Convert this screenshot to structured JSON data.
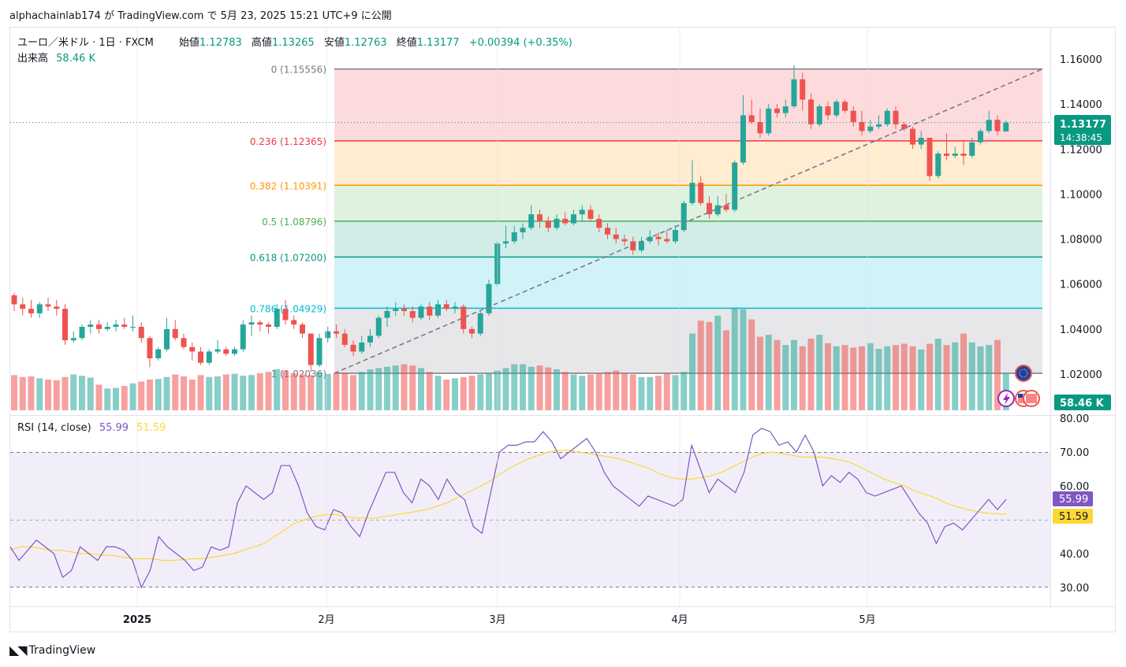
{
  "header": {
    "publish_line": "alphachainlab174 が TradingView.com で 5月 23, 2025 15:21 UTC+9 に公開"
  },
  "legend": {
    "symbol": "ユーロ／米ドル · 1日 · FXCM",
    "open_label": "始値",
    "open": "1.12783",
    "high_label": "高値",
    "high": "1.13265",
    "low_label": "安値",
    "low": "1.12763",
    "close_label": "終値",
    "close": "1.13177",
    "change": "+0.00394 (+0.35%)",
    "volume_label": "出来高",
    "volume": "58.46 K"
  },
  "price_axis": {
    "ticks": [
      "1.16000",
      "1.14000",
      "1.12000",
      "1.10000",
      "1.08000",
      "1.06000",
      "1.04000",
      "1.02000"
    ],
    "last_price": "1.13177",
    "countdown": "14:38:45",
    "volume_badge": "58.46 K"
  },
  "time_axis": {
    "labels": [
      "2025",
      "2月",
      "3月",
      "4月",
      "5月"
    ]
  },
  "rsi": {
    "title": "RSI (14, close)",
    "value": "55.99",
    "ma_value": "51.59",
    "ticks": [
      "80.00",
      "70.00",
      "60.00",
      "50.00",
      "40.00",
      "30.00"
    ]
  },
  "fib_levels": [
    {
      "ratio": "0",
      "price": "1.15556",
      "label": "0 (1.15556)",
      "color": "#787b86"
    },
    {
      "ratio": "0.236",
      "price": "1.12365",
      "label": "0.236 (1.12365)",
      "color": "#f23645"
    },
    {
      "ratio": "0.382",
      "price": "1.10391",
      "label": "0.382 (1.10391)",
      "color": "#ff9800"
    },
    {
      "ratio": "0.5",
      "price": "1.08796",
      "label": "0.5 (1.08796)",
      "color": "#4caf50"
    },
    {
      "ratio": "0.618",
      "price": "1.07200",
      "label": "0.618 (1.07200)",
      "color": "#089981"
    },
    {
      "ratio": "0.786",
      "price": "1.04929",
      "label": "0.786 (1.04929)",
      "color": "#00bcd4"
    },
    {
      "ratio": "1",
      "price": "1.02036",
      "label": "1 (1.02036)",
      "color": "#787b86"
    }
  ],
  "colors": {
    "up": "#26a69a",
    "down": "#ef5350",
    "rsi_line": "#7e57c2",
    "rsi_ma": "#fdd835",
    "last_price_bg": "#089981",
    "rsi_badge": "#7e57c2",
    "rsi_ma_badge": "#fdd835"
  },
  "footer": {
    "brand": "TradingView"
  },
  "chart_data": {
    "type": "candlestick",
    "title": "ユーロ／米ドル · 1日 · FXCM",
    "ylim": [
      1.005,
      1.165
    ],
    "candles": [
      {
        "o": 1.055,
        "h": 1.056,
        "l": 1.048,
        "c": 1.051
      },
      {
        "o": 1.051,
        "h": 1.054,
        "l": 1.046,
        "c": 1.049
      },
      {
        "o": 1.049,
        "h": 1.053,
        "l": 1.045,
        "c": 1.047
      },
      {
        "o": 1.047,
        "h": 1.052,
        "l": 1.045,
        "c": 1.051
      },
      {
        "o": 1.051,
        "h": 1.054,
        "l": 1.048,
        "c": 1.05
      },
      {
        "o": 1.05,
        "h": 1.053,
        "l": 1.046,
        "c": 1.049
      },
      {
        "o": 1.049,
        "h": 1.051,
        "l": 1.033,
        "c": 1.035
      },
      {
        "o": 1.035,
        "h": 1.039,
        "l": 1.034,
        "c": 1.036
      },
      {
        "o": 1.036,
        "h": 1.042,
        "l": 1.035,
        "c": 1.041
      },
      {
        "o": 1.041,
        "h": 1.044,
        "l": 1.038,
        "c": 1.042
      },
      {
        "o": 1.042,
        "h": 1.044,
        "l": 1.038,
        "c": 1.04
      },
      {
        "o": 1.04,
        "h": 1.043,
        "l": 1.039,
        "c": 1.041
      },
      {
        "o": 1.041,
        "h": 1.044,
        "l": 1.039,
        "c": 1.042
      },
      {
        "o": 1.042,
        "h": 1.045,
        "l": 1.04,
        "c": 1.041
      },
      {
        "o": 1.041,
        "h": 1.046,
        "l": 1.039,
        "c": 1.041
      },
      {
        "o": 1.041,
        "h": 1.043,
        "l": 1.034,
        "c": 1.036
      },
      {
        "o": 1.036,
        "h": 1.037,
        "l": 1.023,
        "c": 1.027
      },
      {
        "o": 1.027,
        "h": 1.032,
        "l": 1.026,
        "c": 1.031
      },
      {
        "o": 1.031,
        "h": 1.045,
        "l": 1.03,
        "c": 1.04
      },
      {
        "o": 1.04,
        "h": 1.044,
        "l": 1.035,
        "c": 1.036
      },
      {
        "o": 1.036,
        "h": 1.038,
        "l": 1.031,
        "c": 1.032
      },
      {
        "o": 1.032,
        "h": 1.034,
        "l": 1.026,
        "c": 1.03
      },
      {
        "o": 1.03,
        "h": 1.032,
        "l": 1.024,
        "c": 1.025
      },
      {
        "o": 1.025,
        "h": 1.031,
        "l": 1.024,
        "c": 1.03
      },
      {
        "o": 1.03,
        "h": 1.035,
        "l": 1.029,
        "c": 1.031
      },
      {
        "o": 1.031,
        "h": 1.032,
        "l": 1.028,
        "c": 1.029
      },
      {
        "o": 1.029,
        "h": 1.032,
        "l": 1.028,
        "c": 1.031
      },
      {
        "o": 1.031,
        "h": 1.044,
        "l": 1.03,
        "c": 1.042
      },
      {
        "o": 1.042,
        "h": 1.046,
        "l": 1.037,
        "c": 1.043
      },
      {
        "o": 1.043,
        "h": 1.044,
        "l": 1.039,
        "c": 1.042
      },
      {
        "o": 1.042,
        "h": 1.043,
        "l": 1.038,
        "c": 1.041
      },
      {
        "o": 1.041,
        "h": 1.051,
        "l": 1.04,
        "c": 1.049
      },
      {
        "o": 1.049,
        "h": 1.053,
        "l": 1.042,
        "c": 1.044
      },
      {
        "o": 1.044,
        "h": 1.046,
        "l": 1.04,
        "c": 1.042
      },
      {
        "o": 1.042,
        "h": 1.043,
        "l": 1.036,
        "c": 1.038
      },
      {
        "o": 1.038,
        "h": 1.038,
        "l": 1.021,
        "c": 1.024
      },
      {
        "o": 1.024,
        "h": 1.038,
        "l": 1.023,
        "c": 1.036
      },
      {
        "o": 1.036,
        "h": 1.041,
        "l": 1.034,
        "c": 1.039
      },
      {
        "o": 1.039,
        "h": 1.042,
        "l": 1.036,
        "c": 1.038
      },
      {
        "o": 1.038,
        "h": 1.04,
        "l": 1.032,
        "c": 1.033
      },
      {
        "o": 1.033,
        "h": 1.035,
        "l": 1.028,
        "c": 1.03
      },
      {
        "o": 1.03,
        "h": 1.037,
        "l": 1.029,
        "c": 1.034
      },
      {
        "o": 1.034,
        "h": 1.04,
        "l": 1.032,
        "c": 1.037
      },
      {
        "o": 1.037,
        "h": 1.046,
        "l": 1.036,
        "c": 1.045
      },
      {
        "o": 1.045,
        "h": 1.05,
        "l": 1.041,
        "c": 1.048
      },
      {
        "o": 1.048,
        "h": 1.052,
        "l": 1.046,
        "c": 1.049
      },
      {
        "o": 1.049,
        "h": 1.051,
        "l": 1.046,
        "c": 1.048
      },
      {
        "o": 1.048,
        "h": 1.05,
        "l": 1.043,
        "c": 1.045
      },
      {
        "o": 1.045,
        "h": 1.051,
        "l": 1.044,
        "c": 1.05
      },
      {
        "o": 1.05,
        "h": 1.052,
        "l": 1.044,
        "c": 1.046
      },
      {
        "o": 1.046,
        "h": 1.053,
        "l": 1.045,
        "c": 1.051
      },
      {
        "o": 1.051,
        "h": 1.053,
        "l": 1.048,
        "c": 1.049
      },
      {
        "o": 1.049,
        "h": 1.052,
        "l": 1.047,
        "c": 1.05
      },
      {
        "o": 1.05,
        "h": 1.051,
        "l": 1.038,
        "c": 1.04
      },
      {
        "o": 1.04,
        "h": 1.041,
        "l": 1.036,
        "c": 1.038
      },
      {
        "o": 1.038,
        "h": 1.048,
        "l": 1.037,
        "c": 1.047
      },
      {
        "o": 1.047,
        "h": 1.062,
        "l": 1.046,
        "c": 1.06
      },
      {
        "o": 1.06,
        "h": 1.079,
        "l": 1.059,
        "c": 1.078
      },
      {
        "o": 1.078,
        "h": 1.086,
        "l": 1.076,
        "c": 1.079
      },
      {
        "o": 1.079,
        "h": 1.086,
        "l": 1.078,
        "c": 1.083
      },
      {
        "o": 1.083,
        "h": 1.087,
        "l": 1.08,
        "c": 1.085
      },
      {
        "o": 1.085,
        "h": 1.095,
        "l": 1.084,
        "c": 1.091
      },
      {
        "o": 1.091,
        "h": 1.093,
        "l": 1.085,
        "c": 1.088
      },
      {
        "o": 1.088,
        "h": 1.09,
        "l": 1.083,
        "c": 1.085
      },
      {
        "o": 1.085,
        "h": 1.091,
        "l": 1.084,
        "c": 1.089
      },
      {
        "o": 1.089,
        "h": 1.092,
        "l": 1.086,
        "c": 1.087
      },
      {
        "o": 1.087,
        "h": 1.093,
        "l": 1.086,
        "c": 1.091
      },
      {
        "o": 1.091,
        "h": 1.095,
        "l": 1.088,
        "c": 1.093
      },
      {
        "o": 1.093,
        "h": 1.095,
        "l": 1.088,
        "c": 1.089
      },
      {
        "o": 1.089,
        "h": 1.091,
        "l": 1.083,
        "c": 1.085
      },
      {
        "o": 1.085,
        "h": 1.087,
        "l": 1.08,
        "c": 1.082
      },
      {
        "o": 1.082,
        "h": 1.085,
        "l": 1.078,
        "c": 1.08
      },
      {
        "o": 1.08,
        "h": 1.082,
        "l": 1.077,
        "c": 1.079
      },
      {
        "o": 1.079,
        "h": 1.081,
        "l": 1.073,
        "c": 1.075
      },
      {
        "o": 1.075,
        "h": 1.081,
        "l": 1.074,
        "c": 1.079
      },
      {
        "o": 1.079,
        "h": 1.084,
        "l": 1.078,
        "c": 1.081
      },
      {
        "o": 1.081,
        "h": 1.083,
        "l": 1.077,
        "c": 1.08
      },
      {
        "o": 1.08,
        "h": 1.084,
        "l": 1.078,
        "c": 1.079
      },
      {
        "o": 1.079,
        "h": 1.086,
        "l": 1.078,
        "c": 1.084
      },
      {
        "o": 1.084,
        "h": 1.097,
        "l": 1.083,
        "c": 1.096
      },
      {
        "o": 1.096,
        "h": 1.115,
        "l": 1.095,
        "c": 1.105
      },
      {
        "o": 1.105,
        "h": 1.108,
        "l": 1.095,
        "c": 1.096
      },
      {
        "o": 1.096,
        "h": 1.099,
        "l": 1.089,
        "c": 1.091
      },
      {
        "o": 1.091,
        "h": 1.099,
        "l": 1.09,
        "c": 1.095
      },
      {
        "o": 1.095,
        "h": 1.1,
        "l": 1.092,
        "c": 1.093
      },
      {
        "o": 1.093,
        "h": 1.115,
        "l": 1.092,
        "c": 1.114
      },
      {
        "o": 1.114,
        "h": 1.144,
        "l": 1.113,
        "c": 1.135
      },
      {
        "o": 1.135,
        "h": 1.142,
        "l": 1.131,
        "c": 1.132
      },
      {
        "o": 1.132,
        "h": 1.138,
        "l": 1.125,
        "c": 1.127
      },
      {
        "o": 1.127,
        "h": 1.14,
        "l": 1.126,
        "c": 1.138
      },
      {
        "o": 1.138,
        "h": 1.14,
        "l": 1.134,
        "c": 1.136
      },
      {
        "o": 1.136,
        "h": 1.142,
        "l": 1.134,
        "c": 1.139
      },
      {
        "o": 1.139,
        "h": 1.1573,
        "l": 1.138,
        "c": 1.151
      },
      {
        "o": 1.151,
        "h": 1.154,
        "l": 1.137,
        "c": 1.142
      },
      {
        "o": 1.142,
        "h": 1.145,
        "l": 1.129,
        "c": 1.131
      },
      {
        "o": 1.131,
        "h": 1.14,
        "l": 1.13,
        "c": 1.139
      },
      {
        "o": 1.139,
        "h": 1.141,
        "l": 1.133,
        "c": 1.135
      },
      {
        "o": 1.135,
        "h": 1.142,
        "l": 1.134,
        "c": 1.141
      },
      {
        "o": 1.141,
        "h": 1.142,
        "l": 1.136,
        "c": 1.137
      },
      {
        "o": 1.137,
        "h": 1.139,
        "l": 1.13,
        "c": 1.132
      },
      {
        "o": 1.132,
        "h": 1.137,
        "l": 1.126,
        "c": 1.128
      },
      {
        "o": 1.128,
        "h": 1.133,
        "l": 1.127,
        "c": 1.13
      },
      {
        "o": 1.13,
        "h": 1.135,
        "l": 1.129,
        "c": 1.131
      },
      {
        "o": 1.131,
        "h": 1.138,
        "l": 1.13,
        "c": 1.137
      },
      {
        "o": 1.137,
        "h": 1.139,
        "l": 1.129,
        "c": 1.131
      },
      {
        "o": 1.131,
        "h": 1.132,
        "l": 1.128,
        "c": 1.129
      },
      {
        "o": 1.129,
        "h": 1.13,
        "l": 1.12,
        "c": 1.122
      },
      {
        "o": 1.122,
        "h": 1.128,
        "l": 1.12,
        "c": 1.125
      },
      {
        "o": 1.125,
        "h": 1.125,
        "l": 1.106,
        "c": 1.108
      },
      {
        "o": 1.108,
        "h": 1.119,
        "l": 1.107,
        "c": 1.118
      },
      {
        "o": 1.118,
        "h": 1.127,
        "l": 1.115,
        "c": 1.117
      },
      {
        "o": 1.117,
        "h": 1.121,
        "l": 1.116,
        "c": 1.118
      },
      {
        "o": 1.118,
        "h": 1.124,
        "l": 1.113,
        "c": 1.117
      },
      {
        "o": 1.117,
        "h": 1.125,
        "l": 1.116,
        "c": 1.123
      },
      {
        "o": 1.123,
        "h": 1.129,
        "l": 1.122,
        "c": 1.128
      },
      {
        "o": 1.128,
        "h": 1.137,
        "l": 1.127,
        "c": 1.133
      },
      {
        "o": 1.133,
        "h": 1.135,
        "l": 1.126,
        "c": 1.128
      },
      {
        "o": 1.12783,
        "h": 1.13265,
        "l": 1.12763,
        "c": 1.13177
      }
    ],
    "volume": [
      55,
      52,
      53,
      50,
      48,
      47,
      52,
      56,
      54,
      51,
      40,
      34,
      35,
      38,
      42,
      45,
      48,
      49,
      52,
      56,
      53,
      48,
      55,
      52,
      53,
      56,
      57,
      54,
      55,
      58,
      60,
      64,
      62,
      58,
      56,
      55,
      60,
      57,
      58,
      59,
      55,
      60,
      64,
      66,
      68,
      70,
      72,
      70,
      66,
      60,
      54,
      48,
      50,
      52,
      54,
      56,
      58,
      62,
      66,
      72,
      72,
      68,
      70,
      67,
      64,
      60,
      56,
      54,
      56,
      58,
      60,
      62,
      58,
      56,
      52,
      52,
      54,
      58,
      55,
      60,
      120,
      140,
      138,
      148,
      125,
      160,
      158,
      142,
      115,
      118,
      110,
      102,
      110,
      100,
      112,
      118,
      105,
      100,
      102,
      98,
      100,
      105,
      96,
      100,
      102,
      104,
      100,
      95,
      104,
      112,
      102,
      106,
      120,
      106,
      100,
      102,
      110,
      58.46
    ],
    "rsi": [
      42,
      38,
      41,
      44,
      42,
      40,
      33,
      35,
      42,
      40,
      38,
      42,
      42,
      41,
      38,
      30,
      35,
      45,
      42,
      40,
      38,
      35,
      36,
      42,
      41,
      42,
      55,
      60,
      58,
      56,
      58,
      66,
      66,
      60,
      52,
      48,
      47,
      53,
      52,
      48,
      45,
      52,
      58,
      64,
      64,
      58,
      55,
      62,
      60,
      56,
      62,
      58,
      56,
      48,
      46,
      58,
      70,
      72,
      72,
      73,
      73,
      76,
      73,
      68,
      70,
      72,
      74,
      70,
      64,
      60,
      58,
      56,
      54,
      57,
      56,
      55,
      54,
      56,
      72,
      65,
      58,
      62,
      60,
      58,
      64,
      75,
      77,
      76,
      72,
      73,
      70,
      75,
      70,
      60,
      63,
      61,
      64,
      62,
      58,
      57,
      58,
      59,
      60,
      56,
      52,
      49,
      43,
      48,
      49,
      47,
      50,
      53,
      56,
      53,
      55.99
    ],
    "rsi_ma": [
      41,
      42,
      42,
      41.5,
      41,
      41,
      40.5,
      40,
      40,
      39.5,
      39.5,
      39,
      38.5,
      38.5,
      38.5,
      38,
      38,
      38.2,
      38.5,
      38.5,
      39,
      39.5,
      40,
      41,
      42,
      43,
      45,
      47,
      49,
      50,
      51,
      51.5,
      51.5,
      51,
      50.5,
      50.5,
      50.5,
      51,
      51.5,
      52,
      52.5,
      53,
      54,
      55,
      56.5,
      58,
      59.5,
      61,
      63,
      65,
      66.5,
      68,
      69,
      70,
      70.5,
      70.5,
      70,
      69.5,
      69,
      68.5,
      68,
      67,
      66,
      65,
      63.5,
      62.5,
      62,
      62,
      62.5,
      63,
      64,
      65.5,
      67,
      68.5,
      69.5,
      70,
      69.5,
      69,
      68.5,
      68.5,
      68.5,
      68,
      67.5,
      66.5,
      65,
      63.5,
      62,
      61,
      60,
      58.5,
      57.5,
      56.5,
      55,
      54,
      53.2,
      52.5,
      52,
      51.8,
      51.59
    ],
    "time_labels": [
      "2025",
      "2月",
      "3月",
      "4月",
      "5月"
    ]
  }
}
